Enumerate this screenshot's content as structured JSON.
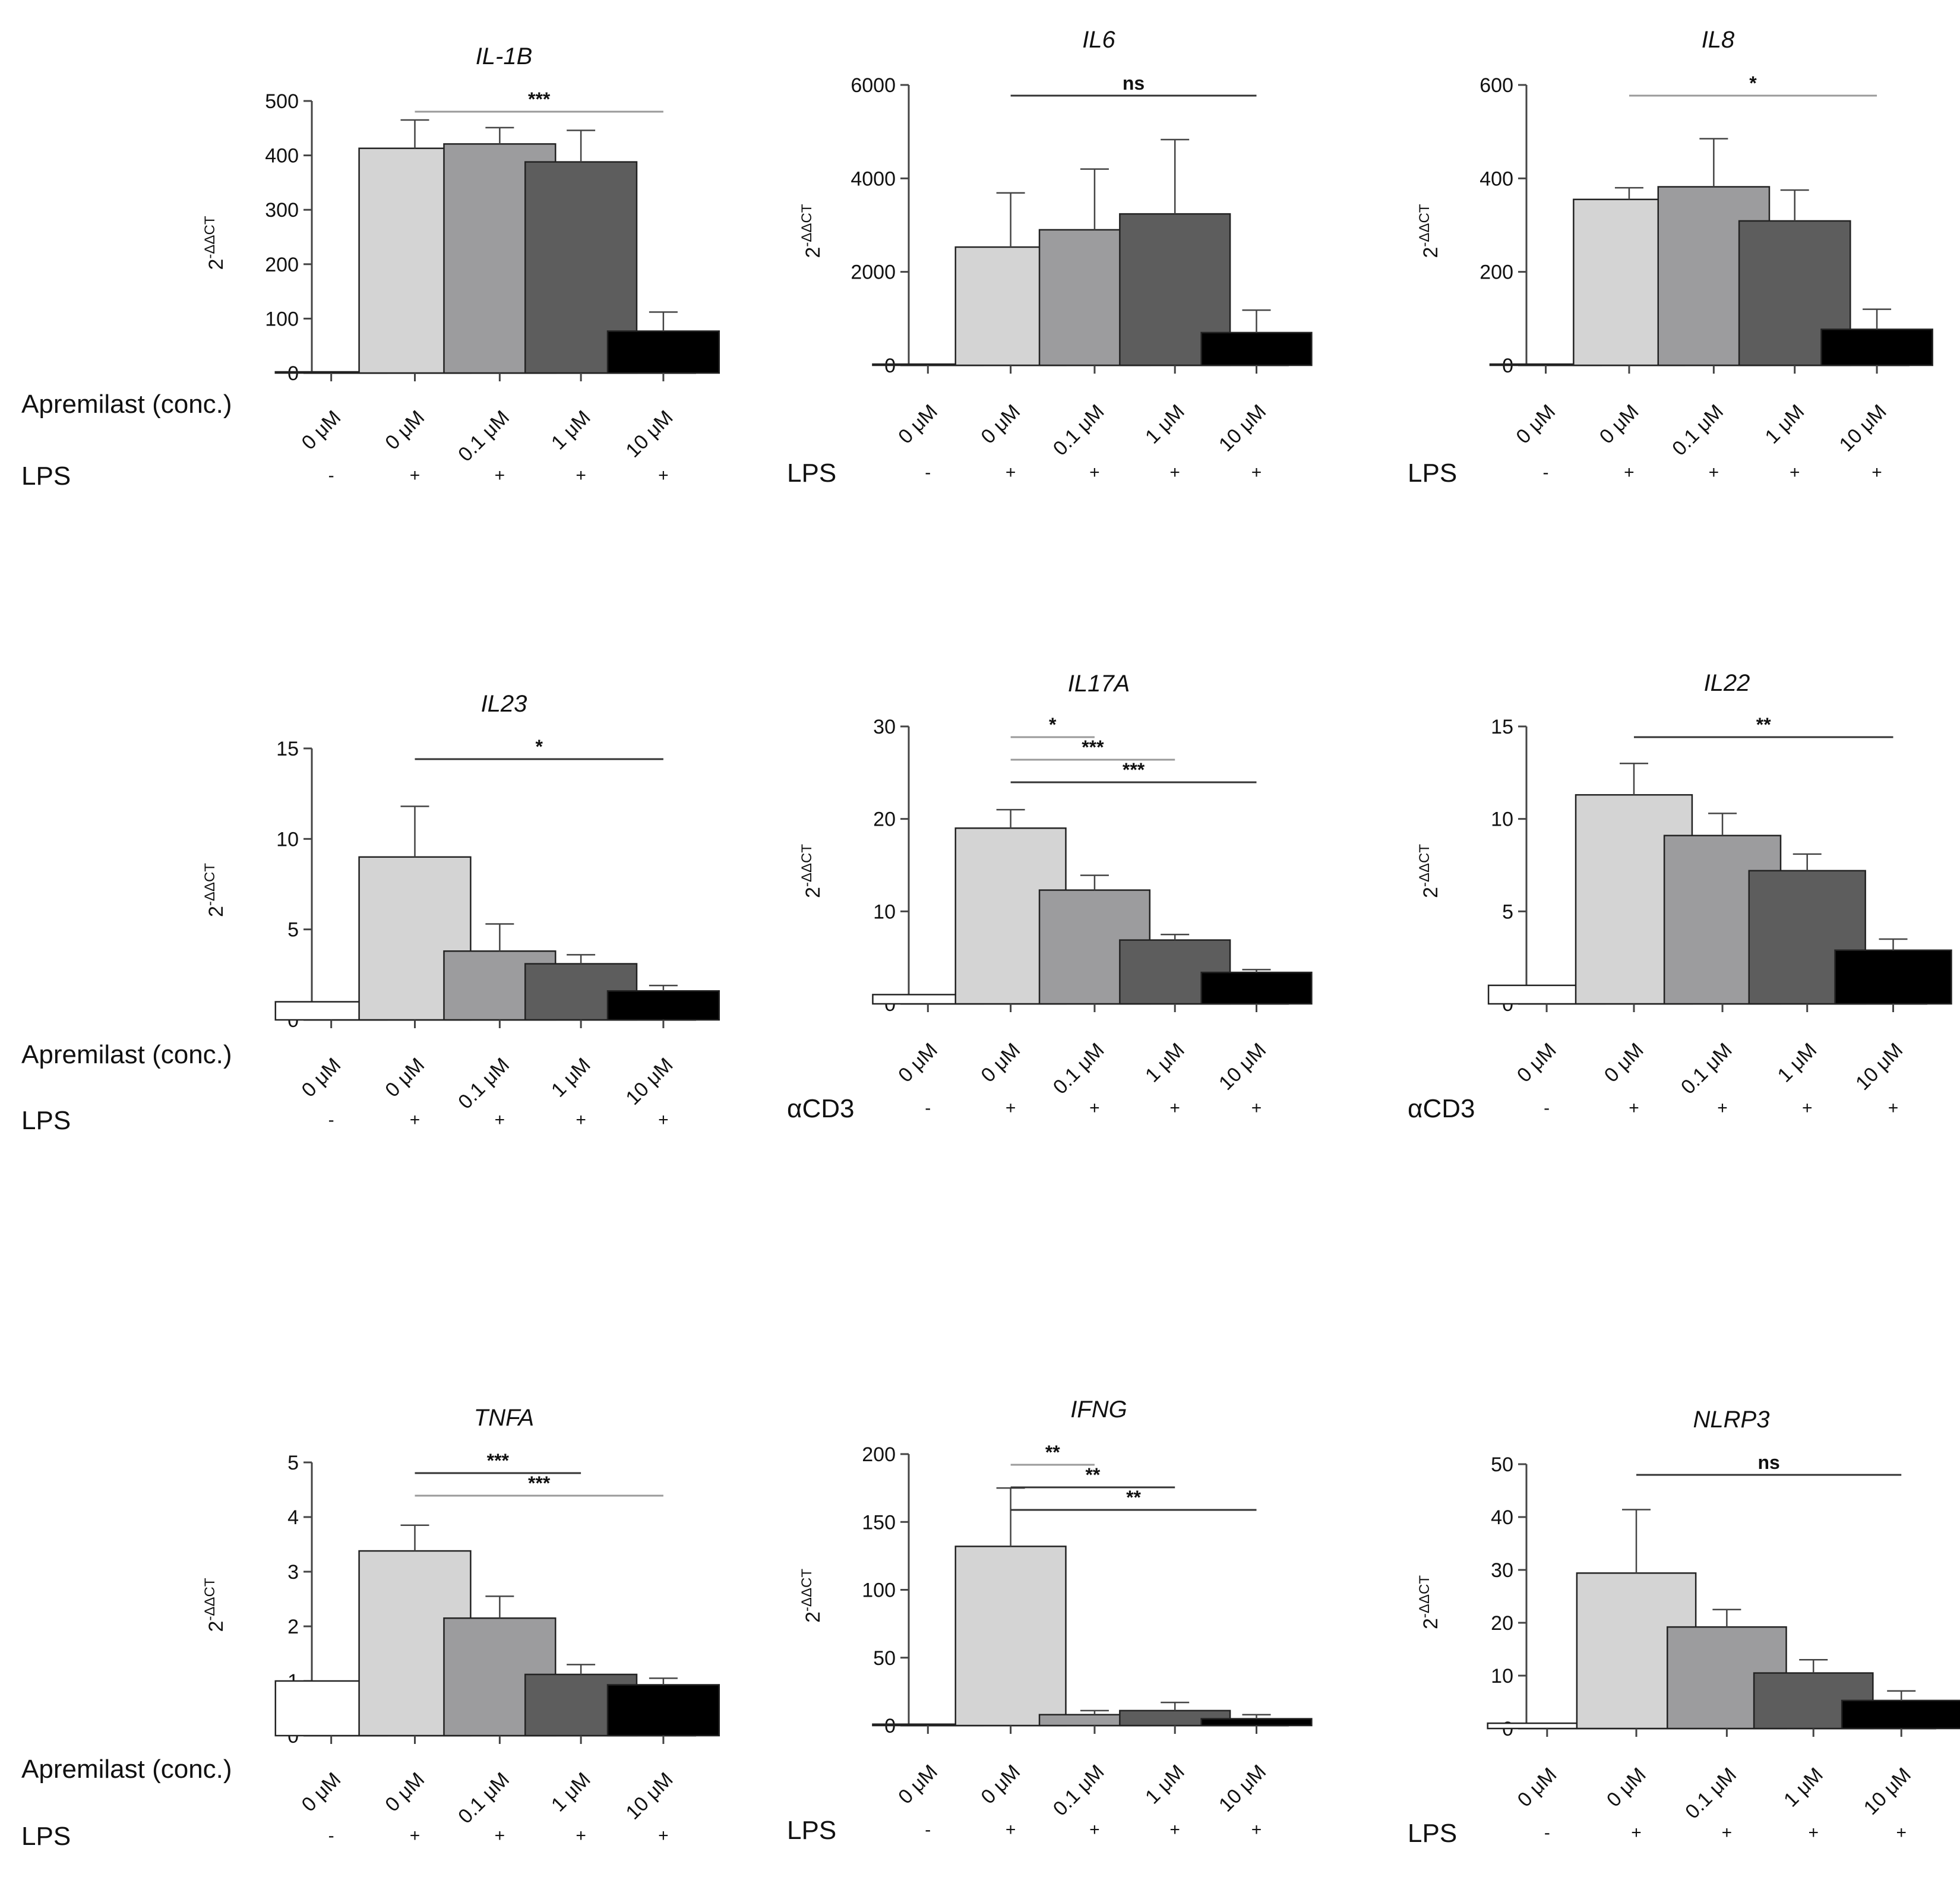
{
  "colors": {
    "0": "#ffffff",
    "1": "#d4d4d4",
    "2": "#9c9c9e",
    "3": "#5d5d5d",
    "4": "#000000"
  },
  "y_axis_label": {
    "base": "2",
    "exponent": "-ΔΔCT"
  },
  "shared": {
    "categories": [
      "0 μM",
      "0 μM",
      "0.1 μM",
      "1 μM",
      "10 μM"
    ],
    "apremilast_label": "Apremilast (conc.)",
    "signs": [
      "-",
      "+",
      "+",
      "+",
      "+"
    ]
  },
  "chart_data": [
    {
      "type": "bar",
      "title": "IL-1B",
      "ylim": [
        0,
        500
      ],
      "yticks": [
        0,
        100,
        200,
        300,
        400,
        500
      ],
      "values": [
        2,
        413,
        421,
        388,
        77
      ],
      "errors": [
        0,
        52,
        30,
        58,
        35
      ],
      "row_label": "LPS",
      "show_apremilast": true,
      "significance": [
        {
          "from": 1,
          "to": 4,
          "label": "***",
          "shade": "gray"
        }
      ]
    },
    {
      "type": "bar",
      "title": "IL6",
      "ylim": [
        0,
        6000
      ],
      "yticks": [
        0,
        2000,
        4000,
        6000
      ],
      "values": [
        0,
        2530,
        2900,
        3240,
        700
      ],
      "errors": [
        0,
        1160,
        1300,
        1590,
        480
      ],
      "row_label": "LPS",
      "show_apremilast": false,
      "significance": [
        {
          "from": 1,
          "to": 4,
          "label": "ns",
          "shade": "dark"
        }
      ]
    },
    {
      "type": "bar",
      "title": "IL8",
      "ylim": [
        0,
        600
      ],
      "yticks": [
        0,
        200,
        400,
        600
      ],
      "values": [
        2,
        355,
        382,
        309,
        77
      ],
      "errors": [
        0,
        25,
        103,
        66,
        43
      ],
      "row_label": "LPS",
      "show_apremilast": false,
      "significance": [
        {
          "from": 1,
          "to": 4,
          "label": "*",
          "shade": "gray"
        }
      ]
    },
    {
      "type": "bar",
      "title": "IL23",
      "ylim": [
        0,
        15
      ],
      "yticks": [
        0,
        5,
        10,
        15
      ],
      "values": [
        1.0,
        9.0,
        3.8,
        3.1,
        1.6
      ],
      "errors": [
        0,
        2.8,
        1.5,
        0.5,
        0.3
      ],
      "row_label": "LPS",
      "show_apremilast": true,
      "significance": [
        {
          "from": 1,
          "to": 4,
          "label": "*",
          "shade": "dark"
        }
      ]
    },
    {
      "type": "bar",
      "title": "IL17A",
      "ylim": [
        0,
        30
      ],
      "yticks": [
        0,
        10,
        20,
        30
      ],
      "values": [
        1.0,
        19.0,
        12.3,
        6.9,
        3.4
      ],
      "errors": [
        0,
        2.0,
        1.6,
        0.6,
        0.3
      ],
      "row_label": "αCD3",
      "show_apremilast": false,
      "significance": [
        {
          "from": 1,
          "to": 2,
          "label": "*",
          "shade": "gray"
        },
        {
          "from": 1,
          "to": 3,
          "label": "***",
          "shade": "gray"
        },
        {
          "from": 1,
          "to": 4,
          "label": "***",
          "shade": "dark"
        }
      ]
    },
    {
      "type": "bar",
      "title": "IL22",
      "ylim": [
        0,
        15
      ],
      "yticks": [
        0,
        5,
        10,
        15
      ],
      "values": [
        1.0,
        11.3,
        9.1,
        7.2,
        2.9
      ],
      "errors": [
        0,
        1.7,
        1.2,
        0.9,
        0.6
      ],
      "row_label": "αCD3",
      "show_apremilast": false,
      "significance": [
        {
          "from": 1,
          "to": 4,
          "label": "**",
          "shade": "dark"
        }
      ]
    },
    {
      "type": "bar",
      "title": "TNFA",
      "ylim": [
        0,
        5
      ],
      "yticks": [
        0,
        1,
        2,
        3,
        4,
        5
      ],
      "values": [
        1.0,
        3.38,
        2.15,
        1.12,
        0.93
      ],
      "errors": [
        0,
        0.47,
        0.4,
        0.18,
        0.12
      ],
      "row_label": "LPS",
      "show_apremilast": true,
      "significance": [
        {
          "from": 1,
          "to": 3,
          "label": "***",
          "shade": "dark"
        },
        {
          "from": 1,
          "to": 4,
          "label": "***",
          "shade": "gray"
        }
      ]
    },
    {
      "type": "bar",
      "title": "IFNG",
      "ylim": [
        0,
        200
      ],
      "yticks": [
        0,
        50,
        100,
        150,
        200
      ],
      "values": [
        1,
        132,
        8,
        11,
        5
      ],
      "errors": [
        0,
        43,
        3,
        6,
        3
      ],
      "row_label": "LPS",
      "show_apremilast": false,
      "significance": [
        {
          "from": 1,
          "to": 2,
          "label": "**",
          "shade": "gray"
        },
        {
          "from": 1,
          "to": 3,
          "label": "**",
          "shade": "dark"
        },
        {
          "from": 1,
          "to": 4,
          "label": "**",
          "shade": "dark"
        }
      ]
    },
    {
      "type": "bar",
      "title": "NLRP3",
      "ylim": [
        0,
        50
      ],
      "yticks": [
        0,
        10,
        20,
        30,
        40,
        50
      ],
      "values": [
        1.0,
        29.4,
        19.2,
        10.5,
        5.3
      ],
      "errors": [
        0,
        12.0,
        3.3,
        2.5,
        1.8
      ],
      "row_label": "LPS",
      "show_apremilast": false,
      "significance": [
        {
          "from": 1,
          "to": 4,
          "label": "ns",
          "shade": "dark"
        }
      ]
    }
  ]
}
